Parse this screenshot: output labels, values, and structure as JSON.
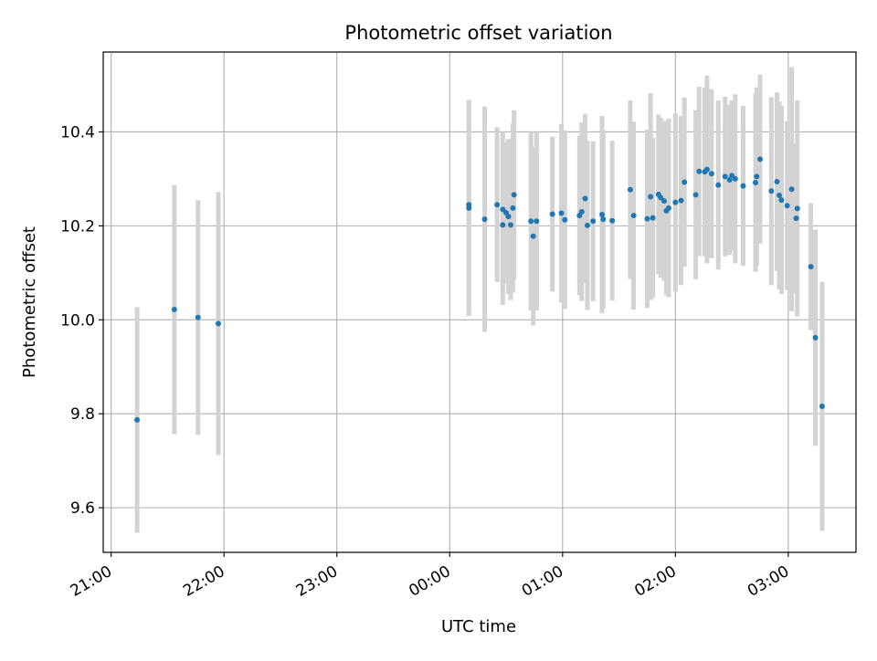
{
  "chart_data": {
    "type": "scatter",
    "title": "Photometric offset variation",
    "xlabel": "UTC time",
    "ylabel": "Photometric offset",
    "x_tick_labels": [
      "21:00",
      "22:00",
      "23:00",
      "00:00",
      "01:00",
      "02:00",
      "03:00"
    ],
    "x_tick_values": [
      -3,
      -2,
      -1,
      0,
      1,
      2,
      3
    ],
    "y_tick_labels": [
      "9.6",
      "9.8",
      "10.0",
      "10.2",
      "10.4"
    ],
    "y_tick_values": [
      9.6,
      9.8,
      10.0,
      10.2,
      10.4
    ],
    "xlim": [
      -3.07,
      3.6
    ],
    "ylim": [
      9.505,
      10.57
    ],
    "grid": true,
    "point_color": "#1f77b4",
    "errorbar_color": "#d3d3d3",
    "series": [
      {
        "x": [
          -2.77,
          -2.44,
          -2.23,
          -2.05,
          0.17,
          0.17,
          0.31,
          0.42,
          0.47,
          0.47,
          0.5,
          0.52,
          0.54,
          0.56,
          0.57,
          0.72,
          0.74,
          0.77,
          0.91,
          0.99,
          1.02,
          1.15,
          1.17,
          1.2,
          1.22,
          1.27,
          1.35,
          1.36,
          1.44,
          1.6,
          1.63,
          1.75,
          1.78,
          1.8,
          1.85,
          1.87,
          1.9,
          1.92,
          1.94,
          2.0,
          2.05,
          2.08,
          2.18,
          2.21,
          2.26,
          2.28,
          2.32,
          2.38,
          2.44,
          2.48,
          2.5,
          2.53,
          2.6,
          2.71,
          2.72,
          2.75,
          2.85,
          2.9,
          2.92,
          2.94,
          2.99,
          3.03,
          3.07,
          3.08,
          3.2,
          3.24,
          3.3
        ],
        "y": [
          9.787,
          10.022,
          10.005,
          9.992,
          10.238,
          10.245,
          10.214,
          10.245,
          10.235,
          10.202,
          10.228,
          10.22,
          10.202,
          10.238,
          10.266,
          10.21,
          10.178,
          10.21,
          10.225,
          10.227,
          10.213,
          10.222,
          10.23,
          10.258,
          10.201,
          10.21,
          10.224,
          10.214,
          10.211,
          10.277,
          10.222,
          10.215,
          10.262,
          10.217,
          10.267,
          10.26,
          10.253,
          10.232,
          10.238,
          10.25,
          10.254,
          10.293,
          10.266,
          10.316,
          10.315,
          10.32,
          10.311,
          10.287,
          10.305,
          10.298,
          10.307,
          10.3,
          10.285,
          10.292,
          10.305,
          10.342,
          10.274,
          10.294,
          10.265,
          10.255,
          10.243,
          10.278,
          10.216,
          10.237,
          10.113,
          9.962,
          9.816
        ],
        "yerr": [
          0.24,
          0.265,
          0.25,
          0.28,
          0.23,
          0.22,
          0.24,
          0.165,
          0.165,
          0.17,
          0.15,
          0.165,
          0.16,
          0.18,
          0.18,
          0.19,
          0.19,
          0.19,
          0.165,
          0.19,
          0.19,
          0.17,
          0.19,
          0.18,
          0.18,
          0.17,
          0.21,
          0.19,
          0.17,
          0.19,
          0.2,
          0.19,
          0.22,
          0.17,
          0.17,
          0.17,
          0.17,
          0.18,
          0.19,
          0.19,
          0.18,
          0.18,
          0.18,
          0.18,
          0.18,
          0.2,
          0.18,
          0.18,
          0.17,
          0.16,
          0.16,
          0.18,
          0.17,
          0.19,
          0.19,
          0.18,
          0.2,
          0.19,
          0.2,
          0.2,
          0.18,
          0.26,
          0.16,
          0.23,
          0.135,
          0.23,
          0.265
        ]
      }
    ]
  }
}
